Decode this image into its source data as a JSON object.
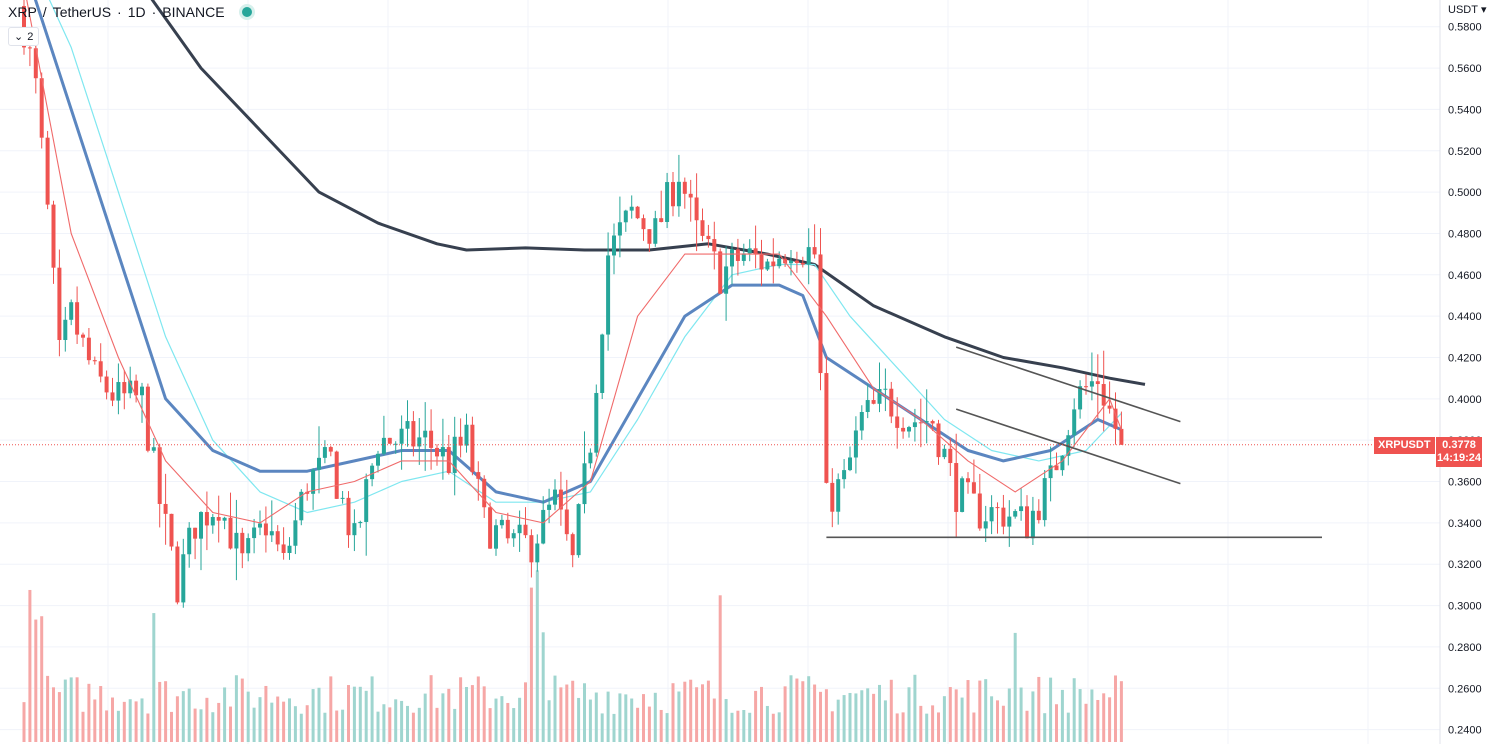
{
  "legend": {
    "symbol": "XRP",
    "separator": "/",
    "quote": "TetherUS",
    "interval": "1D",
    "exchange": "BINANCE",
    "dot_sep": "·"
  },
  "indicators_toggle": {
    "count": "2"
  },
  "price_axis": {
    "currency": "USDT"
  },
  "last_price": {
    "symbol_tag": "XRPUSDT",
    "value": "0.3778",
    "countdown": "14:19:24"
  },
  "colors": {
    "up": "#26a69a",
    "down": "#ef5350",
    "up_volume": "#9fd5cf",
    "down_volume": "#f6a7a6",
    "ema_fast": "#f06a6a",
    "ema_mid": "#5b86c0",
    "ema_cyan": "#7fe7f0",
    "sma_200": "#37404f",
    "drawing": "#555555"
  },
  "chart_data": {
    "type": "candlestick",
    "symbol": "XRPUSDT",
    "ylim": [
      0.234,
      0.591
    ],
    "y_ticks": [
      0.58,
      0.56,
      0.54,
      0.52,
      0.5,
      0.48,
      0.46,
      0.44,
      0.42,
      0.4,
      0.38,
      0.36,
      0.34,
      0.32,
      0.3,
      0.28,
      0.26,
      0.24
    ],
    "y_tick_labels": [
      "0.5800",
      "0.5600",
      "0.5400",
      "0.5200",
      "0.5000",
      "0.4800",
      "0.4600",
      "0.4400",
      "0.4200",
      "0.4000",
      "0.3800",
      "0.3600",
      "0.3400",
      "0.3200",
      "0.3000",
      "0.2800",
      "0.2600",
      "0.2400"
    ],
    "candle_count": 187,
    "last_close": 0.3778,
    "price_anchors": [
      [
        0,
        0.58
      ],
      [
        2,
        0.55
      ],
      [
        4,
        0.49
      ],
      [
        6,
        0.42
      ],
      [
        8,
        0.44
      ],
      [
        12,
        0.41
      ],
      [
        16,
        0.4
      ],
      [
        20,
        0.4
      ],
      [
        23,
        0.35
      ],
      [
        26,
        0.31
      ],
      [
        29,
        0.34
      ],
      [
        33,
        0.35
      ],
      [
        37,
        0.32
      ],
      [
        41,
        0.34
      ],
      [
        44,
        0.32
      ],
      [
        48,
        0.36
      ],
      [
        52,
        0.37
      ],
      [
        56,
        0.33
      ],
      [
        60,
        0.38
      ],
      [
        64,
        0.38
      ],
      [
        68,
        0.38
      ],
      [
        72,
        0.37
      ],
      [
        75,
        0.38
      ],
      [
        78,
        0.34
      ],
      [
        82,
        0.33
      ],
      [
        86,
        0.33
      ],
      [
        90,
        0.35
      ],
      [
        93,
        0.32
      ],
      [
        96,
        0.38
      ],
      [
        99,
        0.47
      ],
      [
        103,
        0.49
      ],
      [
        107,
        0.48
      ],
      [
        111,
        0.51
      ],
      [
        114,
        0.48
      ],
      [
        118,
        0.46
      ],
      [
        122,
        0.47
      ],
      [
        126,
        0.465
      ],
      [
        130,
        0.475
      ],
      [
        134,
        0.47
      ],
      [
        136,
        0.35
      ],
      [
        139,
        0.36
      ],
      [
        142,
        0.39
      ],
      [
        146,
        0.4
      ],
      [
        150,
        0.39
      ],
      [
        154,
        0.39
      ],
      [
        158,
        0.355
      ],
      [
        162,
        0.345
      ],
      [
        166,
        0.345
      ],
      [
        170,
        0.34
      ],
      [
        174,
        0.36
      ],
      [
        178,
        0.4
      ],
      [
        182,
        0.41
      ],
      [
        186,
        0.3778
      ]
    ],
    "ema_20": [
      [
        0,
        0.6
      ],
      [
        8,
        0.48
      ],
      [
        16,
        0.42
      ],
      [
        24,
        0.37
      ],
      [
        32,
        0.345
      ],
      [
        40,
        0.34
      ],
      [
        48,
        0.355
      ],
      [
        56,
        0.36
      ],
      [
        64,
        0.37
      ],
      [
        72,
        0.37
      ],
      [
        80,
        0.345
      ],
      [
        88,
        0.34
      ],
      [
        96,
        0.36
      ],
      [
        104,
        0.44
      ],
      [
        112,
        0.47
      ],
      [
        120,
        0.47
      ],
      [
        128,
        0.47
      ],
      [
        136,
        0.44
      ],
      [
        144,
        0.405
      ],
      [
        152,
        0.39
      ],
      [
        160,
        0.37
      ],
      [
        168,
        0.355
      ],
      [
        176,
        0.37
      ],
      [
        184,
        0.4
      ],
      [
        186,
        0.385
      ]
    ],
    "ema_50": [
      [
        0,
        0.61
      ],
      [
        8,
        0.54
      ],
      [
        16,
        0.47
      ],
      [
        24,
        0.4
      ],
      [
        32,
        0.375
      ],
      [
        40,
        0.365
      ],
      [
        48,
        0.365
      ],
      [
        56,
        0.37
      ],
      [
        64,
        0.375
      ],
      [
        72,
        0.375
      ],
      [
        80,
        0.355
      ],
      [
        88,
        0.35
      ],
      [
        96,
        0.36
      ],
      [
        104,
        0.4
      ],
      [
        112,
        0.44
      ],
      [
        120,
        0.455
      ],
      [
        128,
        0.455
      ],
      [
        132,
        0.45
      ],
      [
        136,
        0.42
      ],
      [
        144,
        0.405
      ],
      [
        152,
        0.39
      ],
      [
        160,
        0.375
      ],
      [
        166,
        0.37
      ],
      [
        174,
        0.375
      ],
      [
        182,
        0.39
      ],
      [
        186,
        0.385
      ]
    ],
    "ema_100": [
      [
        0,
        0.62
      ],
      [
        8,
        0.57
      ],
      [
        16,
        0.5
      ],
      [
        24,
        0.43
      ],
      [
        32,
        0.38
      ],
      [
        40,
        0.355
      ],
      [
        48,
        0.345
      ],
      [
        56,
        0.35
      ],
      [
        64,
        0.36
      ],
      [
        72,
        0.365
      ],
      [
        80,
        0.35
      ],
      [
        88,
        0.35
      ],
      [
        96,
        0.355
      ],
      [
        104,
        0.39
      ],
      [
        112,
        0.43
      ],
      [
        120,
        0.46
      ],
      [
        128,
        0.465
      ],
      [
        134,
        0.465
      ],
      [
        140,
        0.44
      ],
      [
        148,
        0.415
      ],
      [
        156,
        0.39
      ],
      [
        164,
        0.375
      ],
      [
        172,
        0.37
      ],
      [
        180,
        0.375
      ],
      [
        186,
        0.393
      ]
    ],
    "sma_200": [
      [
        20,
        0.6
      ],
      [
        30,
        0.56
      ],
      [
        40,
        0.53
      ],
      [
        50,
        0.5
      ],
      [
        60,
        0.485
      ],
      [
        70,
        0.475
      ],
      [
        75,
        0.472
      ],
      [
        85,
        0.473
      ],
      [
        95,
        0.472
      ],
      [
        106,
        0.472
      ],
      [
        116,
        0.475
      ],
      [
        126,
        0.47
      ],
      [
        134,
        0.465
      ],
      [
        144,
        0.445
      ],
      [
        156,
        0.43
      ],
      [
        166,
        0.42
      ],
      [
        176,
        0.415
      ],
      [
        184,
        0.41
      ],
      [
        190,
        0.407
      ]
    ],
    "drawings": [
      {
        "type": "horizontal-support",
        "from": [
          136,
          0.333
        ],
        "to": [
          220,
          0.333
        ]
      },
      {
        "type": "channel-top",
        "from": [
          158,
          0.425
        ],
        "to": [
          196,
          0.389
        ]
      },
      {
        "type": "channel-bottom",
        "from": [
          158,
          0.395
        ],
        "to": [
          196,
          0.359
        ]
      }
    ]
  }
}
